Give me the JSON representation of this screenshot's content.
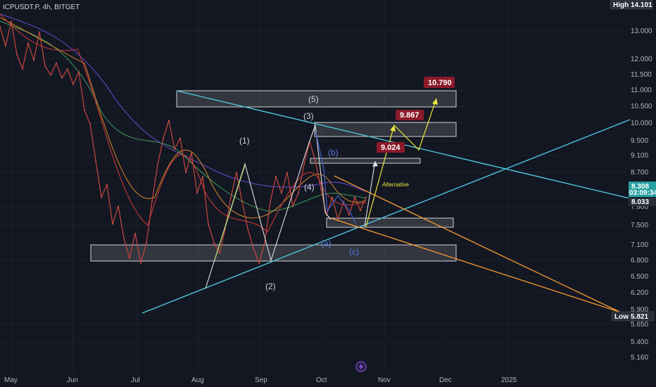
{
  "header": {
    "symbol": "ICPUSDT.P, 4h, BITGET"
  },
  "colors": {
    "background": "#131722",
    "grid": "#1e222d",
    "cyan_trendline": "#4fc3dc",
    "orange_trendline": "#f59a30",
    "target_box": "#8b1a2a",
    "yellow_path": "#e8e83a",
    "white_wave": "#e0e0e0",
    "blue_wave": "#4060d0"
  },
  "axis": {
    "price_ticks": [
      "13.000",
      "12.000",
      "11.500",
      "11.000",
      "10.500",
      "10.000",
      "9.500",
      "9.100",
      "8.700",
      "7.900",
      "7.500",
      "7.100",
      "6.800",
      "6.500",
      "6.200",
      "5.900",
      "5.650",
      "5.400",
      "5.160"
    ],
    "time_ticks": [
      "May",
      "Jun",
      "Jul",
      "Aug",
      "Sep",
      "Oct",
      "Nov",
      "Dec",
      "2025"
    ]
  },
  "price_tags": {
    "high_label": "High",
    "high_value": "14.101",
    "low_label": "Low",
    "low_value": "5.821",
    "current_price": "8.308",
    "countdown": "03:09:34",
    "secondary_price": "8.033"
  },
  "annotations": {
    "waves_white": [
      "(1)",
      "(2)",
      "(3)",
      "(4)",
      "(5)"
    ],
    "waves_blue": [
      "(a)",
      "(b)",
      "(c)"
    ],
    "alternative_label": "Alternative",
    "targets": [
      "9.024",
      "9.867",
      "10.790"
    ]
  },
  "chart_data": {
    "type": "line",
    "title": "ICPUSDT.P, 4h, BITGET",
    "ylim": [
      5.05,
      14.3
    ],
    "y_scale": "log",
    "series": [
      {
        "values": [
          13.4,
          12.7,
          13.6,
          12.4,
          11.9,
          12.8,
          12.2,
          13.2,
          12.0,
          11.7,
          12.1,
          11.6,
          11.9,
          11.4,
          11.8,
          10.6,
          10.2,
          9.2,
          8.3,
          8.6,
          7.7,
          8.1,
          7.4,
          7.0,
          7.5,
          6.9,
          7.3,
          8.2,
          9.1,
          9.8,
          10.3,
          9.5,
          9.8,
          8.9,
          9.4,
          8.4,
          8.8,
          7.7,
          7.3,
          7.1,
          7.6,
          8.3,
          8.9,
          8.2,
          7.6,
          7.2,
          6.9,
          7.3,
          8.2,
          8.8,
          8.4,
          8.9,
          8.1,
          8.4,
          9.1,
          9.7,
          9.2,
          8.5,
          7.9,
          8.3,
          7.8,
          8.2,
          7.9,
          8.3,
          8.0,
          8.31
        ]
      }
    ],
    "annotations": {
      "targets": [
        9.024,
        9.867,
        10.79
      ],
      "high": 14.101,
      "low": 5.821,
      "current": 8.308
    },
    "grid": true,
    "legend": "none"
  }
}
